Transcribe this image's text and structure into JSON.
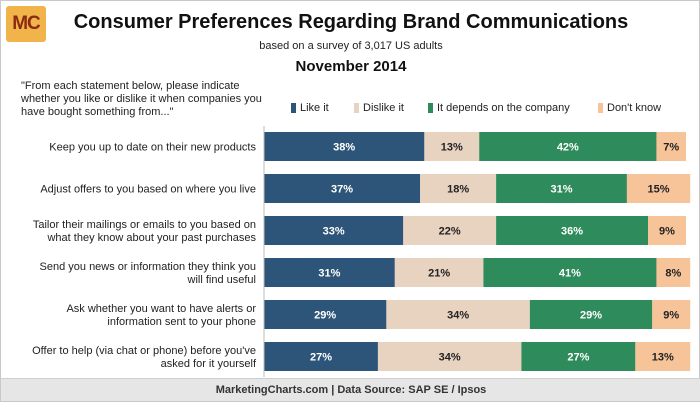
{
  "header": {
    "logo_text": "MC",
    "title": "Consumer Preferences Regarding Brand Communications",
    "subtitle": "based on a survey of 3,017 US adults",
    "date": "November 2014",
    "question": "\"From each statement below, please indicate whether you like or dislike it when companies you have bought something from...\""
  },
  "footer": {
    "source": "MarketingCharts.com | Data Source: SAP SE / Ipsos"
  },
  "colors": {
    "like": "#2d5579",
    "dislike": "#e8d3c1",
    "depends": "#2e8b5b",
    "dont_know": "#f7c49a",
    "like_text": "#ffffff",
    "dislike_text": "#222222",
    "depends_text": "#ffffff",
    "dont_know_text": "#222222"
  },
  "chart_data": {
    "type": "bar",
    "orientation": "horizontal",
    "stacked": true,
    "value_format": "percent",
    "xlim": [
      0,
      100
    ],
    "grid": false,
    "legend_placement": "top",
    "categories": [
      [
        "Keep you up to date on their new products"
      ],
      [
        "Adjust offers to you based on where you live"
      ],
      [
        "Tailor their mailings or emails to you based on",
        "what they know about your past purchases"
      ],
      [
        "Send you news or information they think you",
        "will find useful"
      ],
      [
        "Ask whether you want to have alerts or",
        "information sent to your phone"
      ],
      [
        "Offer to help (via chat or phone) before you've",
        "asked for it yourself"
      ]
    ],
    "series": [
      {
        "name": "Like it",
        "key": "like",
        "values": [
          38,
          37,
          33,
          31,
          29,
          27
        ]
      },
      {
        "name": "Dislike it",
        "key": "dislike",
        "values": [
          13,
          18,
          22,
          21,
          34,
          34
        ]
      },
      {
        "name": "It depends on the company",
        "key": "depends",
        "values": [
          42,
          31,
          36,
          41,
          29,
          27
        ]
      },
      {
        "name": "Don't know",
        "key": "dont_know",
        "values": [
          7,
          15,
          9,
          8,
          9,
          13
        ]
      }
    ]
  }
}
